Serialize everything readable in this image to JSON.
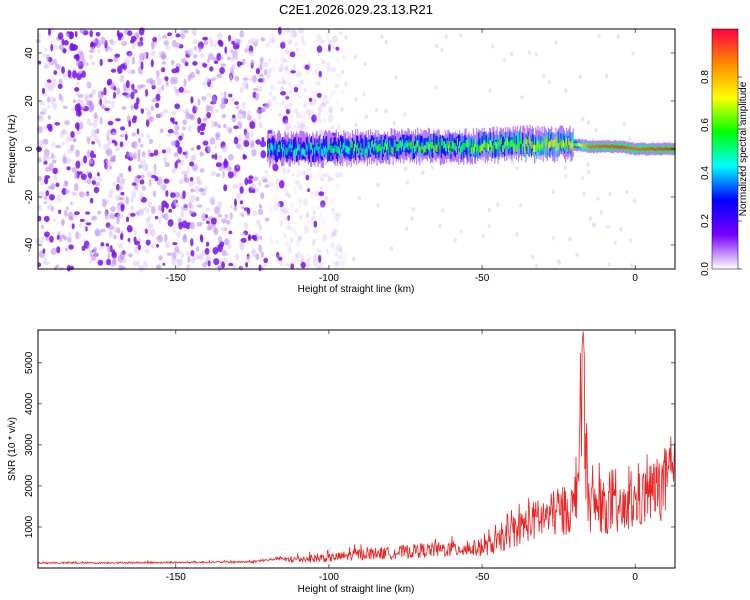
{
  "title": "C2E1.2026.029.23.13.R21",
  "colors": {
    "line": "#ee2222",
    "axes": "#000000",
    "colormap": [
      "#ffffff",
      "#7700ff",
      "#0000ff",
      "#00ffff",
      "#00ff00",
      "#ffff00",
      "#ff8800",
      "#ff0044"
    ]
  },
  "chart_data": [
    {
      "type": "heatmap",
      "title": "C2E1.2026.029.23.13.R21",
      "xlabel": "Height of straight line (km)",
      "ylabel": "Frequency (Hz)",
      "xlim": [
        -195,
        13
      ],
      "ylim": [
        -50,
        50
      ],
      "xticks": [
        -150,
        -100,
        -50,
        0
      ],
      "yticks": [
        -40,
        -20,
        0,
        20,
        40
      ],
      "colorbar": {
        "label": "Normalized spectral amplitude",
        "range": [
          0.0,
          1.0
        ],
        "ticks": [
          0.0,
          0.2,
          0.4,
          0.6,
          0.8
        ]
      },
      "ridge": {
        "x": [
          -120,
          -100,
          -80,
          -60,
          -40,
          -20,
          -15,
          -5,
          0,
          10,
          13
        ],
        "y": [
          0,
          0,
          1,
          1,
          2,
          2,
          1,
          1,
          0,
          0,
          0
        ],
        "amplitude": [
          0.3,
          0.35,
          0.4,
          0.45,
          0.5,
          0.6,
          0.9,
          0.95,
          0.9,
          0.95,
          0.95
        ]
      },
      "noise_region": {
        "x": [
          -195,
          -105
        ],
        "amplitude": 0.1
      }
    },
    {
      "type": "line",
      "xlabel": "Height of straight line (km)",
      "ylabel": "SNR (10 * v/v)",
      "xlim": [
        -195,
        13
      ],
      "ylim": [
        0,
        5800
      ],
      "xticks": [
        -150,
        -100,
        -50,
        0
      ],
      "yticks": [
        1000,
        2000,
        3000,
        4000,
        5000
      ],
      "series": [
        {
          "x": [
            -195,
            -180,
            -160,
            -140,
            -125,
            -115,
            -110,
            -100,
            -90,
            -80,
            -70,
            -60,
            -50,
            -45,
            -40,
            -35,
            -30,
            -25,
            -20,
            -17,
            -15,
            -10,
            -5,
            0,
            5,
            10,
            13
          ],
          "y": [
            150,
            150,
            160,
            170,
            180,
            300,
            350,
            400,
            550,
            600,
            700,
            750,
            800,
            1000,
            1400,
            1800,
            2000,
            2200,
            2400,
            5800,
            2500,
            2400,
            2200,
            2600,
            3000,
            3400,
            3500
          ]
        }
      ]
    }
  ]
}
